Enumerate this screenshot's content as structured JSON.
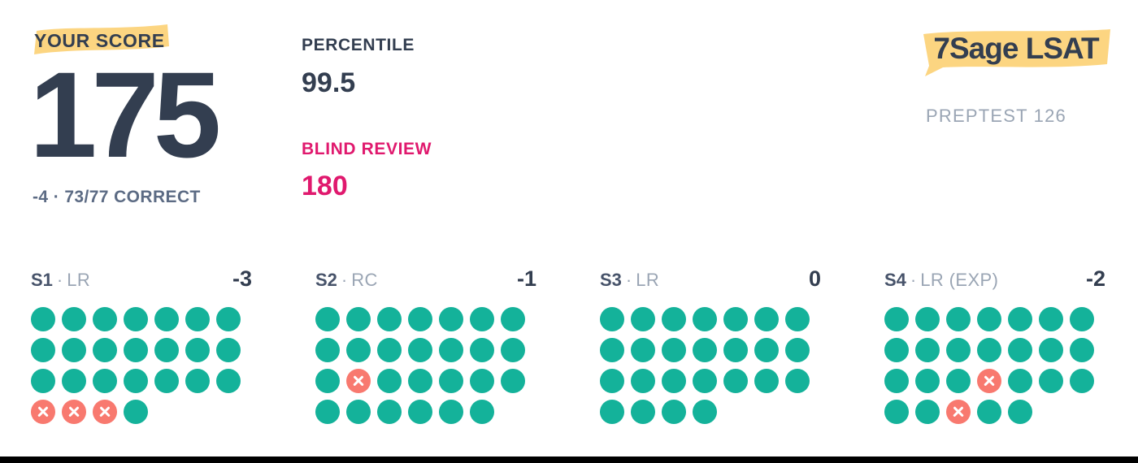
{
  "score": {
    "label": "YOUR SCORE",
    "value": "175",
    "detail": "-4 · 73/77 CORRECT"
  },
  "stats": {
    "percentile_label": "PERCENTILE",
    "percentile_value": "99.5",
    "blind_review_label": "BLIND REVIEW",
    "blind_review_value": "180"
  },
  "brand": {
    "logo_text": "7Sage LSAT",
    "preptest": "PREPTEST 126"
  },
  "sections": [
    {
      "id": "S1",
      "separator": "·",
      "type": "LR",
      "score": "-3",
      "total": 25,
      "wrong": [
        22,
        23,
        24
      ]
    },
    {
      "id": "S2",
      "separator": "·",
      "type": "RC",
      "score": "-1",
      "total": 27,
      "wrong": [
        16
      ]
    },
    {
      "id": "S3",
      "separator": "·",
      "type": "LR",
      "score": "0",
      "total": 25,
      "wrong": []
    },
    {
      "id": "S4",
      "separator": "·",
      "type": "LR (EXP)",
      "score": "-2",
      "total": 26,
      "wrong": [
        18,
        24
      ]
    }
  ],
  "colors": {
    "correct": "#14b29a",
    "incorrect": "#f8796f",
    "highlight": "#fcd581",
    "navy": "#333e50",
    "pink": "#e0196e",
    "muted": "#9aa5b4",
    "slate": "#5c6b84",
    "bar": "#000000"
  }
}
